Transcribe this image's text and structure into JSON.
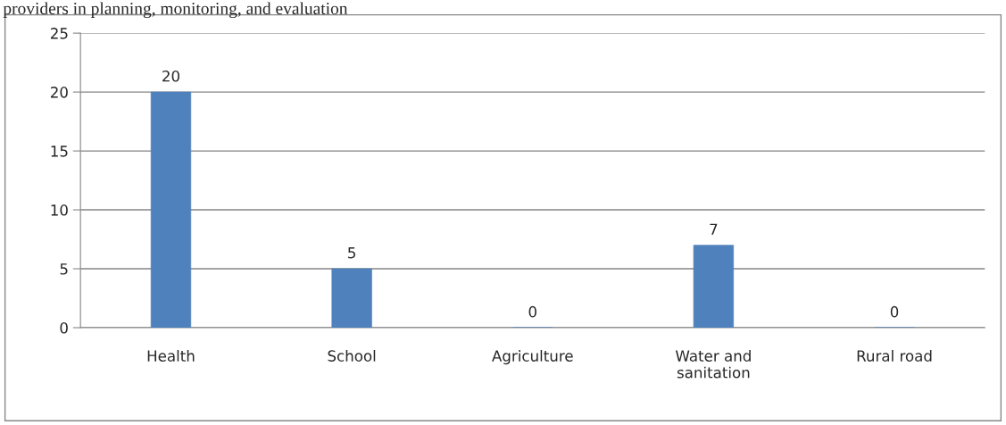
{
  "chart_data": {
    "type": "bar",
    "title": "providers in planning, monitoring, and evaluation",
    "categories": [
      "Health",
      "School",
      "Agriculture",
      "Water and\nsanitation",
      "Rural road"
    ],
    "values": [
      20,
      5,
      0,
      7,
      0
    ],
    "color": "#4f81bd",
    "ylim": [
      0,
      25
    ],
    "yticks": [
      0,
      5,
      10,
      15,
      20,
      25
    ],
    "grid": "y",
    "data_labels": true
  }
}
